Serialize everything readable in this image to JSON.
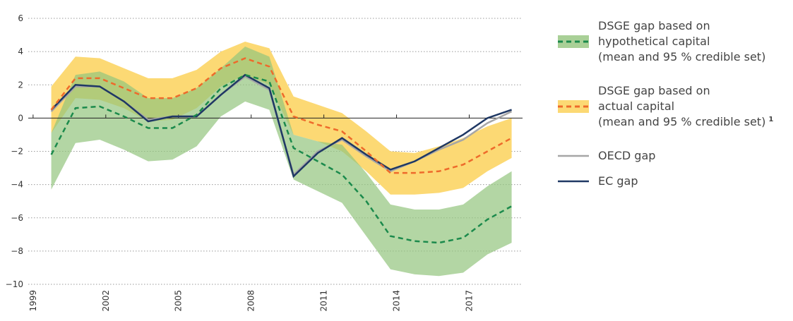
{
  "chart_data": {
    "type": "line",
    "x": [
      1999.75,
      2000.75,
      2001.75,
      2002.75,
      2003.75,
      2004.75,
      2005.75,
      2006.75,
      2007.75,
      2008.75,
      2009.75,
      2010.75,
      2011.75,
      2012.75,
      2013.75,
      2014.75,
      2015.75,
      2016.75,
      2017.75,
      2018.75
    ],
    "xlim": [
      1998.8,
      2019.2
    ],
    "xticks": [
      1999,
      2002,
      2005,
      2008,
      2011,
      2014,
      2017
    ],
    "ylim": [
      -10,
      6
    ],
    "yticks": [
      {
        "value": -10,
        "label": "−10"
      },
      {
        "value": -8,
        "label": "−8"
      },
      {
        "value": -6,
        "label": "−6"
      },
      {
        "value": -4,
        "label": "−4"
      },
      {
        "value": -2,
        "label": "−2"
      },
      0,
      2,
      4,
      6
    ],
    "grid": true,
    "footnote_marker": "1",
    "series": [
      {
        "name": "DSGE gap based on\nhypothetical capital\n(mean and 95 % credible set)",
        "color": "#1b8a4c",
        "band_color": "#93c47d",
        "dashed": true,
        "values": [
          -2.2,
          0.6,
          0.7,
          0.1,
          -0.6,
          -0.6,
          0.2,
          1.8,
          2.6,
          2.2,
          -1.8,
          -2.6,
          -3.4,
          -5.0,
          -7.1,
          -7.4,
          -7.5,
          -7.2,
          -6.1,
          -5.3
        ],
        "upper": [
          -0.9,
          2.6,
          2.8,
          2.2,
          1.2,
          1.2,
          1.8,
          3.0,
          4.3,
          3.7,
          -1.0,
          -1.4,
          -1.6,
          -3.3,
          -5.2,
          -5.5,
          -5.5,
          -5.2,
          -4.1,
          -3.2
        ],
        "lower": [
          -4.3,
          -1.5,
          -1.3,
          -1.9,
          -2.6,
          -2.5,
          -1.7,
          0.1,
          1.0,
          0.5,
          -3.7,
          -4.4,
          -5.1,
          -7.1,
          -9.1,
          -9.4,
          -9.5,
          -9.3,
          -8.2,
          -7.5
        ]
      },
      {
        "name": "DSGE gap based on\nactual capital\n(mean and 95 % credible set)",
        "color": "#ee6a2b",
        "band_color": "#fcd974",
        "dashed": true,
        "footnote": true,
        "values": [
          0.5,
          2.4,
          2.4,
          1.8,
          1.2,
          1.2,
          1.8,
          3.0,
          3.6,
          3.1,
          0.1,
          -0.4,
          -0.8,
          -2.0,
          -3.3,
          -3.3,
          -3.2,
          -2.8,
          -2.0,
          -1.2
        ],
        "upper": [
          1.9,
          3.7,
          3.6,
          3.0,
          2.4,
          2.4,
          2.9,
          4.0,
          4.6,
          4.2,
          1.3,
          0.8,
          0.3,
          -0.8,
          -2.0,
          -2.1,
          -1.7,
          -1.2,
          -0.5,
          0.0
        ],
        "lower": [
          -0.9,
          1.2,
          1.1,
          0.6,
          -0.2,
          -0.1,
          0.6,
          1.9,
          2.6,
          2.0,
          -1.0,
          -1.4,
          -2.0,
          -3.2,
          -4.6,
          -4.6,
          -4.5,
          -4.2,
          -3.2,
          -2.4
        ]
      },
      {
        "name": "OECD gap",
        "color": "#a6a6a6",
        "values": [
          0.4,
          1.9,
          1.9,
          1.0,
          -0.1,
          0.1,
          0.1,
          1.4,
          2.5,
          1.7,
          -3.4,
          -2.0,
          -1.3,
          -2.3,
          -3.2,
          -2.6,
          -1.9,
          -1.3,
          -0.3,
          0.4
        ]
      },
      {
        "name": "EC gap",
        "color": "#1f3864",
        "values": [
          0.5,
          2.0,
          1.9,
          1.0,
          -0.2,
          0.1,
          0.1,
          1.4,
          2.6,
          1.8,
          -3.5,
          -2.1,
          -1.2,
          -2.2,
          -3.1,
          -2.6,
          -1.8,
          -1.0,
          0.0,
          0.5
        ]
      }
    ]
  }
}
